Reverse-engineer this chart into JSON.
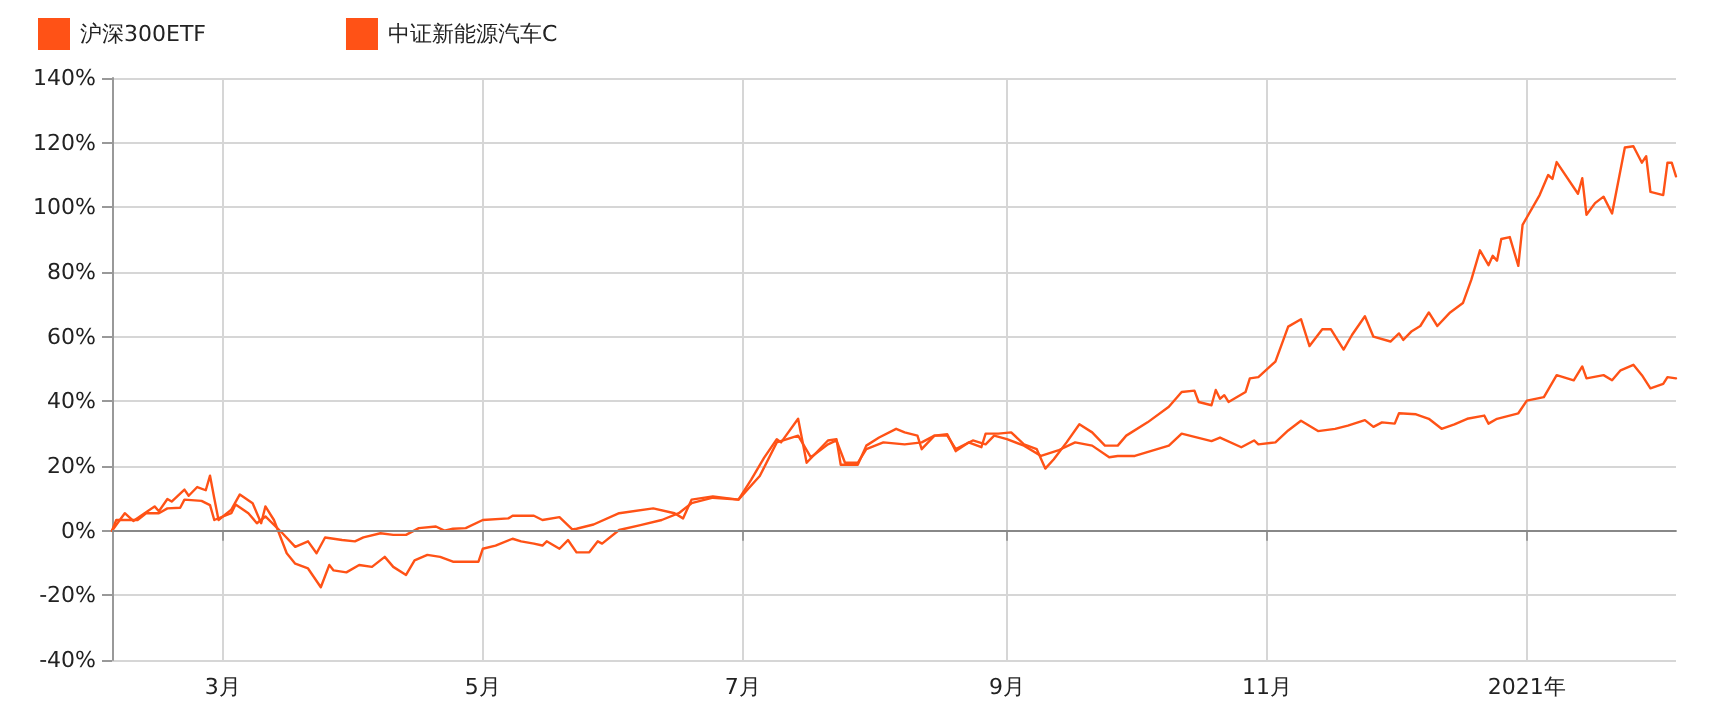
{
  "chart_data": {
    "type": "line",
    "legend": "top left",
    "grid": true,
    "marker": "none",
    "line_style": "solid",
    "xlim": [
      "2020-02-04",
      "2021-02-05"
    ],
    "xticks": [
      {
        "value": "2020-03-01",
        "label": "3月"
      },
      {
        "value": "2020-05-01",
        "label": "5月"
      },
      {
        "value": "2020-07-01",
        "label": "7月"
      },
      {
        "value": "2020-09-01",
        "label": "9月"
      },
      {
        "value": "2020-11-01",
        "label": "11月"
      },
      {
        "value": "2021-01-01",
        "label": "2021年"
      }
    ],
    "ylim": [
      -40,
      140
    ],
    "yticks": [
      {
        "value": -40,
        "label": "-40%"
      },
      {
        "value": -20,
        "label": "-20%"
      },
      {
        "value": 0,
        "label": "0%"
      },
      {
        "value": 20,
        "label": "20%"
      },
      {
        "value": 40,
        "label": "40%"
      },
      {
        "value": 60,
        "label": "60%"
      },
      {
        "value": 80,
        "label": "80%"
      },
      {
        "value": 100,
        "label": "100%"
      },
      {
        "value": 120,
        "label": "120%"
      },
      {
        "value": 140,
        "label": "140%"
      }
    ],
    "ref_lines": [
      {
        "axis": "y",
        "value": 0,
        "color": "#888888"
      }
    ],
    "series": [
      {
        "name": "沪深300ETF",
        "color": "#ff5216",
        "x": [
          "2020-02-04",
          "2020-02-05",
          "2020-02-10",
          "2020-02-12",
          "2020-02-15",
          "2020-02-17",
          "2020-02-20",
          "2020-02-21",
          "2020-02-25",
          "2020-02-27",
          "2020-02-28",
          "2020-03-03",
          "2020-03-04",
          "2020-03-07",
          "2020-03-09",
          "2020-03-11",
          "2020-03-15",
          "2020-03-18",
          "2020-03-21",
          "2020-03-23",
          "2020-03-25",
          "2020-03-29",
          "2020-04-01",
          "2020-04-03",
          "2020-04-07",
          "2020-04-10",
          "2020-04-13",
          "2020-04-16",
          "2020-04-20",
          "2020-04-22",
          "2020-04-24",
          "2020-04-27",
          "2020-05-01",
          "2020-05-07",
          "2020-05-08",
          "2020-05-13",
          "2020-05-15",
          "2020-05-19",
          "2020-05-22",
          "2020-05-23",
          "2020-05-27",
          "2020-06-02",
          "2020-06-10",
          "2020-06-15",
          "2020-06-17",
          "2020-06-19",
          "2020-06-24",
          "2020-06-30",
          "2020-07-05",
          "2020-07-09",
          "2020-07-14",
          "2020-07-17",
          "2020-07-21",
          "2020-07-23",
          "2020-07-25",
          "2020-07-28",
          "2020-07-30",
          "2020-08-03",
          "2020-08-08",
          "2020-08-12",
          "2020-08-15",
          "2020-08-18",
          "2020-08-20",
          "2020-08-24",
          "2020-08-27",
          "2020-08-29",
          "2020-09-01",
          "2020-09-05",
          "2020-09-09",
          "2020-09-13",
          "2020-09-17",
          "2020-09-21",
          "2020-09-25",
          "2020-09-27",
          "2020-10-01",
          "2020-10-09",
          "2020-10-12",
          "2020-10-19",
          "2020-10-21",
          "2020-10-26",
          "2020-10-29",
          "2020-10-30",
          "2020-11-03",
          "2020-11-06",
          "2020-11-09",
          "2020-11-13",
          "2020-11-17",
          "2020-11-20",
          "2020-11-24",
          "2020-11-26",
          "2020-11-28",
          "2020-12-01",
          "2020-12-02",
          "2020-12-06",
          "2020-12-09",
          "2020-12-12",
          "2020-12-15",
          "2020-12-18",
          "2020-12-22",
          "2020-12-23",
          "2020-12-25",
          "2020-12-30",
          "2021-01-01",
          "2021-01-05",
          "2021-01-08",
          "2021-01-12",
          "2021-01-14",
          "2021-01-15",
          "2021-01-19",
          "2021-01-21",
          "2021-01-23",
          "2021-01-26",
          "2021-01-28",
          "2021-01-30",
          "2021-02-02",
          "2021-02-03",
          "2021-02-05"
        ],
        "values": [
          0,
          3.3,
          3.3,
          5.4,
          5.4,
          6.9,
          7.1,
          9.6,
          9.2,
          7.9,
          3.3,
          5.4,
          8.1,
          5.4,
          2.3,
          4.4,
          -0.8,
          -5,
          -3.3,
          -7,
          -2.1,
          -2.9,
          -3.3,
          -2.1,
          -0.8,
          -1.3,
          -1.3,
          0.8,
          1.3,
          0,
          0.6,
          0.8,
          3.3,
          3.8,
          4.6,
          4.6,
          3.3,
          4.2,
          0.4,
          0.6,
          1.9,
          5.4,
          6.9,
          5.4,
          3.8,
          9.6,
          10.6,
          9.6,
          16.9,
          27.3,
          29.4,
          22.7,
          26.7,
          27.9,
          21,
          21,
          25.2,
          27.3,
          26.7,
          27.3,
          29.4,
          29.4,
          25.2,
          27.9,
          26.7,
          29.4,
          28.3,
          26.3,
          23.1,
          24.8,
          27.3,
          26.3,
          22.7,
          23.1,
          23.1,
          26.3,
          30,
          27.7,
          28.8,
          25.8,
          27.9,
          26.7,
          27.3,
          31,
          34,
          30.8,
          31.5,
          32.5,
          34.2,
          32.1,
          33.5,
          33.1,
          36.3,
          36,
          34.6,
          31.5,
          32.9,
          34.6,
          35.6,
          33.1,
          34.6,
          36.3,
          40.2,
          41.3,
          48.1,
          46.5,
          50.8,
          47.1,
          48.1,
          46.5,
          49.6,
          51.3,
          48.1,
          44,
          45.4,
          47.5,
          47.1
        ]
      },
      {
        "name": "中证新能源汽车C",
        "color": "#ff5216",
        "x": [
          "2020-02-04",
          "2020-02-07",
          "2020-02-09",
          "2020-02-14",
          "2020-02-15",
          "2020-02-17",
          "2020-02-18",
          "2020-02-21",
          "2020-02-22",
          "2020-02-24",
          "2020-02-26",
          "2020-02-27",
          "2020-02-28",
          "2020-02-29",
          "2020-03-03",
          "2020-03-05",
          "2020-03-08",
          "2020-03-10",
          "2020-03-11",
          "2020-03-13",
          "2020-03-16",
          "2020-03-18",
          "2020-03-21",
          "2020-03-24",
          "2020-03-26",
          "2020-03-27",
          "2020-03-30",
          "2020-04-02",
          "2020-04-05",
          "2020-04-08",
          "2020-04-10",
          "2020-04-13",
          "2020-04-15",
          "2020-04-18",
          "2020-04-21",
          "2020-04-24",
          "2020-04-30",
          "2020-05-01",
          "2020-05-04",
          "2020-05-08",
          "2020-05-10",
          "2020-05-13",
          "2020-05-15",
          "2020-05-16",
          "2020-05-19",
          "2020-05-21",
          "2020-05-23",
          "2020-05-26",
          "2020-05-28",
          "2020-05-29",
          "2020-06-02",
          "2020-06-07",
          "2020-06-12",
          "2020-06-16",
          "2020-06-19",
          "2020-06-24",
          "2020-06-30",
          "2020-07-03",
          "2020-07-06",
          "2020-07-09",
          "2020-07-10",
          "2020-07-14",
          "2020-07-16",
          "2020-07-21",
          "2020-07-23",
          "2020-07-24",
          "2020-07-28",
          "2020-07-30",
          "2020-08-02",
          "2020-08-06",
          "2020-08-08",
          "2020-08-11",
          "2020-08-12",
          "2020-08-15",
          "2020-08-18",
          "2020-08-20",
          "2020-08-23",
          "2020-08-26",
          "2020-08-27",
          "2020-08-30",
          "2020-09-02",
          "2020-09-05",
          "2020-09-08",
          "2020-09-10",
          "2020-09-12",
          "2020-09-15",
          "2020-09-18",
          "2020-09-21",
          "2020-09-24",
          "2020-09-27",
          "2020-09-29",
          "2020-10-04",
          "2020-10-09",
          "2020-10-12",
          "2020-10-15",
          "2020-10-16",
          "2020-10-19",
          "2020-10-20",
          "2020-10-21",
          "2020-10-22",
          "2020-10-23",
          "2020-10-27",
          "2020-10-28",
          "2020-10-30",
          "2020-11-03",
          "2020-11-06",
          "2020-11-09",
          "2020-11-11",
          "2020-11-14",
          "2020-11-16",
          "2020-11-19",
          "2020-11-21",
          "2020-11-24",
          "2020-11-26",
          "2020-11-30",
          "2020-12-02",
          "2020-12-03",
          "2020-12-05",
          "2020-12-07",
          "2020-12-09",
          "2020-12-11",
          "2020-12-14",
          "2020-12-17",
          "2020-12-19",
          "2020-12-21",
          "2020-12-23",
          "2020-12-24",
          "2020-12-25",
          "2020-12-26",
          "2020-12-28",
          "2020-12-30",
          "2020-12-31",
          "2021-01-04",
          "2021-01-06",
          "2021-01-07",
          "2021-01-08",
          "2021-01-13",
          "2021-01-14",
          "2021-01-15",
          "2021-01-17",
          "2021-01-19",
          "2021-01-21",
          "2021-01-24",
          "2021-01-26",
          "2021-01-28",
          "2021-01-29",
          "2021-01-30",
          "2021-02-02",
          "2021-02-03",
          "2021-02-04",
          "2021-02-05"
        ],
        "values": [
          0,
          5.4,
          3,
          7.5,
          6,
          9.8,
          9,
          12.7,
          10.8,
          13.5,
          12.5,
          17,
          10,
          3.3,
          6.5,
          11.2,
          8.5,
          2.3,
          7.5,
          3.3,
          -7,
          -10.2,
          -11.7,
          -17.5,
          -10.6,
          -12.3,
          -12.9,
          -10.6,
          -11.2,
          -8.1,
          -11.2,
          -13.7,
          -9.2,
          -7.5,
          -8.1,
          -9.6,
          -9.6,
          -5.6,
          -4.6,
          -2.5,
          -3.3,
          -4,
          -4.6,
          -3.3,
          -5.6,
          -2.9,
          -6.7,
          -6.7,
          -3.3,
          -4,
          0.2,
          1.7,
          3.3,
          5.4,
          8.5,
          10.2,
          9.6,
          15.8,
          22.5,
          28.3,
          27.3,
          34.6,
          21,
          27.9,
          28.3,
          20.4,
          20.4,
          26.3,
          28.8,
          31.5,
          30.4,
          29.4,
          25.2,
          29.4,
          29.8,
          24.6,
          27.3,
          25.8,
          30,
          30,
          30.4,
          26.7,
          25.2,
          19.2,
          22.1,
          27.3,
          32.9,
          30.4,
          26.3,
          26.3,
          29.4,
          33.5,
          38.3,
          42.9,
          43.3,
          39.8,
          38.8,
          43.5,
          40.8,
          41.9,
          39.8,
          42.9,
          47.1,
          47.5,
          52.3,
          63.1,
          65.4,
          57.1,
          62.3,
          62.3,
          56,
          60.6,
          66.3,
          60,
          58.5,
          61,
          59,
          61.7,
          63.3,
          67.5,
          63.3,
          67.5,
          70.4,
          77.7,
          86.7,
          82.1,
          85,
          83.5,
          90.2,
          90.8,
          81.9,
          94.6,
          103.8,
          110,
          108.8,
          114,
          104.2,
          109,
          97.7,
          101.3,
          103.3,
          98.1,
          118.5,
          118.9,
          113.8,
          115.8,
          104.8,
          103.8,
          113.8,
          113.8,
          109.6
        ]
      }
    ]
  }
}
